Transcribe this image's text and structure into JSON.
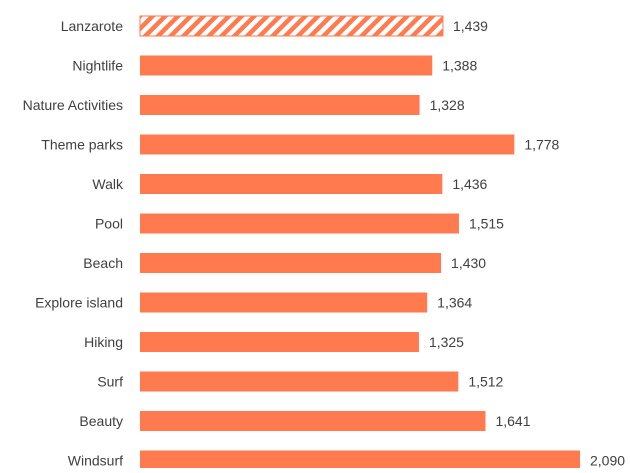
{
  "chart_data": {
    "type": "bar",
    "orientation": "horizontal",
    "categories": [
      "Lanzarote",
      "Nightlife",
      "Nature Activities",
      "Theme parks",
      "Walk",
      "Pool",
      "Beach",
      "Explore island",
      "Hiking",
      "Surf",
      "Beauty",
      "Windsurf"
    ],
    "values": [
      1439,
      1388,
      1328,
      1778,
      1436,
      1515,
      1430,
      1364,
      1325,
      1512,
      1641,
      2090
    ],
    "value_labels": [
      "1,439",
      "1,388",
      "1,328",
      "1,778",
      "1,436",
      "1,515",
      "1,430",
      "1,364",
      "1,325",
      "1,512",
      "1,641",
      "2,090"
    ],
    "highlight_category": "Lanzarote",
    "highlight_style": "hatched",
    "title": "",
    "xlabel": "",
    "ylabel": "",
    "xlim": [
      0,
      2090
    ],
    "grid": false,
    "legend": "none",
    "colors": {
      "bar": "#FF7B4F",
      "highlight": "#FF7B4F",
      "highlight_fill": "#FFFFFF",
      "text": "#404040"
    }
  }
}
